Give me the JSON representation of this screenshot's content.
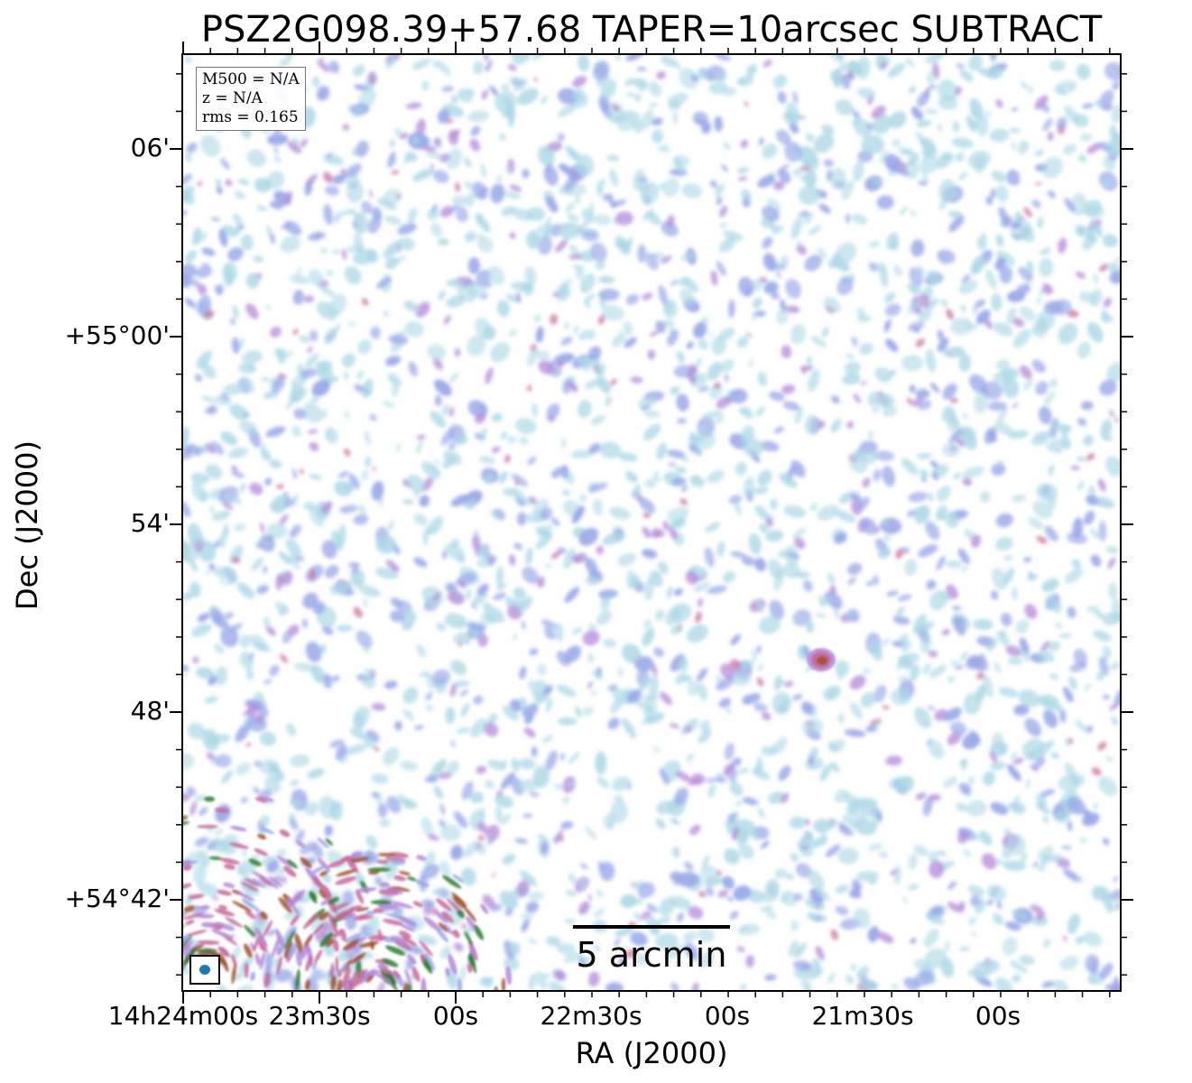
{
  "figure": {
    "title": "PSZ2G098.39+57.68 TAPER=10arcsec SUBTRACT",
    "info": {
      "mass": "M500 = N/A",
      "redshift": "z = N/A",
      "rms": "rms = 0.165"
    },
    "xlabel": "RA (J2000)",
    "ylabel": "Dec (J2000)",
    "xticks": [
      "14h24m00s",
      "23m30s",
      "00s",
      "22m30s",
      "00s",
      "21m30s",
      "00s"
    ],
    "yticks": [
      "06'",
      "+55°00'",
      "54'",
      "48'",
      "+54°42'"
    ],
    "scalebar_label": "5 arcmin",
    "colormap": [
      "#add8e6",
      "#9aa9e8",
      "#b48ad8",
      "#c76a9b",
      "#a0522d",
      "#2e7d32"
    ],
    "beam_color": "#1f77b4",
    "frame_color": "#000000"
  }
}
